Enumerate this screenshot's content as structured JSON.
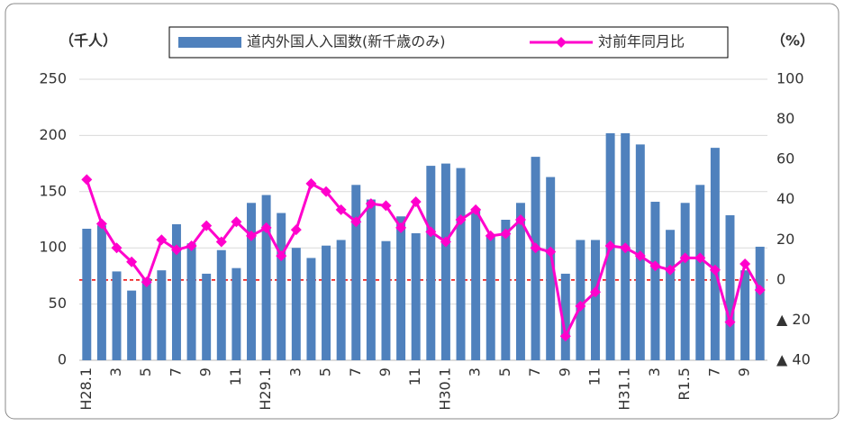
{
  "chart_data": {
    "type": "bar_line",
    "y_unit": "（千人）",
    "y2_unit": "（%）",
    "categories": [
      "H28.1",
      null,
      "3",
      null,
      "5",
      null,
      "7",
      null,
      "9",
      null,
      "11",
      null,
      "H29.1",
      null,
      "3",
      null,
      "5",
      null,
      "7",
      null,
      "9",
      null,
      "11",
      null,
      "H30.1",
      null,
      "3",
      null,
      "5",
      null,
      "7",
      null,
      "9",
      null,
      "11",
      null,
      "H31.1",
      null,
      "3",
      null,
      "R1.5",
      null,
      "7",
      null,
      "9",
      null
    ],
    "series": [
      {
        "name": "道内外国人入国数(新千歳のみ)",
        "type": "bar",
        "color": "#4f81bd",
        "values": [
          117,
          120,
          79,
          62,
          73,
          80,
          121,
          104,
          77,
          98,
          82,
          140,
          147,
          131,
          100,
          91,
          102,
          107,
          156,
          143,
          106,
          128,
          113,
          173,
          175,
          171,
          135,
          110,
          125,
          140,
          181,
          163,
          77,
          107,
          107,
          202,
          202,
          192,
          141,
          116,
          140,
          156,
          189,
          129,
          80,
          101
        ]
      },
      {
        "name": "対前年同月比",
        "type": "line",
        "axis": "y2",
        "color": "#ff00cc",
        "values": [
          50,
          28,
          16,
          9,
          -1,
          20,
          15,
          17,
          27,
          19,
          29,
          22,
          26,
          12,
          25,
          48,
          44,
          35,
          29,
          38,
          37,
          26,
          39,
          24,
          19,
          30,
          35,
          22,
          23,
          30,
          16,
          14,
          -28,
          -13,
          -6,
          17,
          16,
          12,
          7,
          5,
          11,
          11,
          5,
          -21,
          8,
          -5
        ]
      }
    ],
    "ylim": [
      0,
      250
    ],
    "yticks": [
      0,
      50,
      100,
      150,
      200,
      250
    ],
    "y2lim": [
      -40,
      100
    ],
    "y2ticks": [
      {
        "value": -40,
        "label": "▲ 40"
      },
      {
        "value": -20,
        "label": "▲ 20"
      },
      0,
      20,
      40,
      60,
      80,
      100
    ],
    "y2_reference": 0,
    "grid": true
  }
}
